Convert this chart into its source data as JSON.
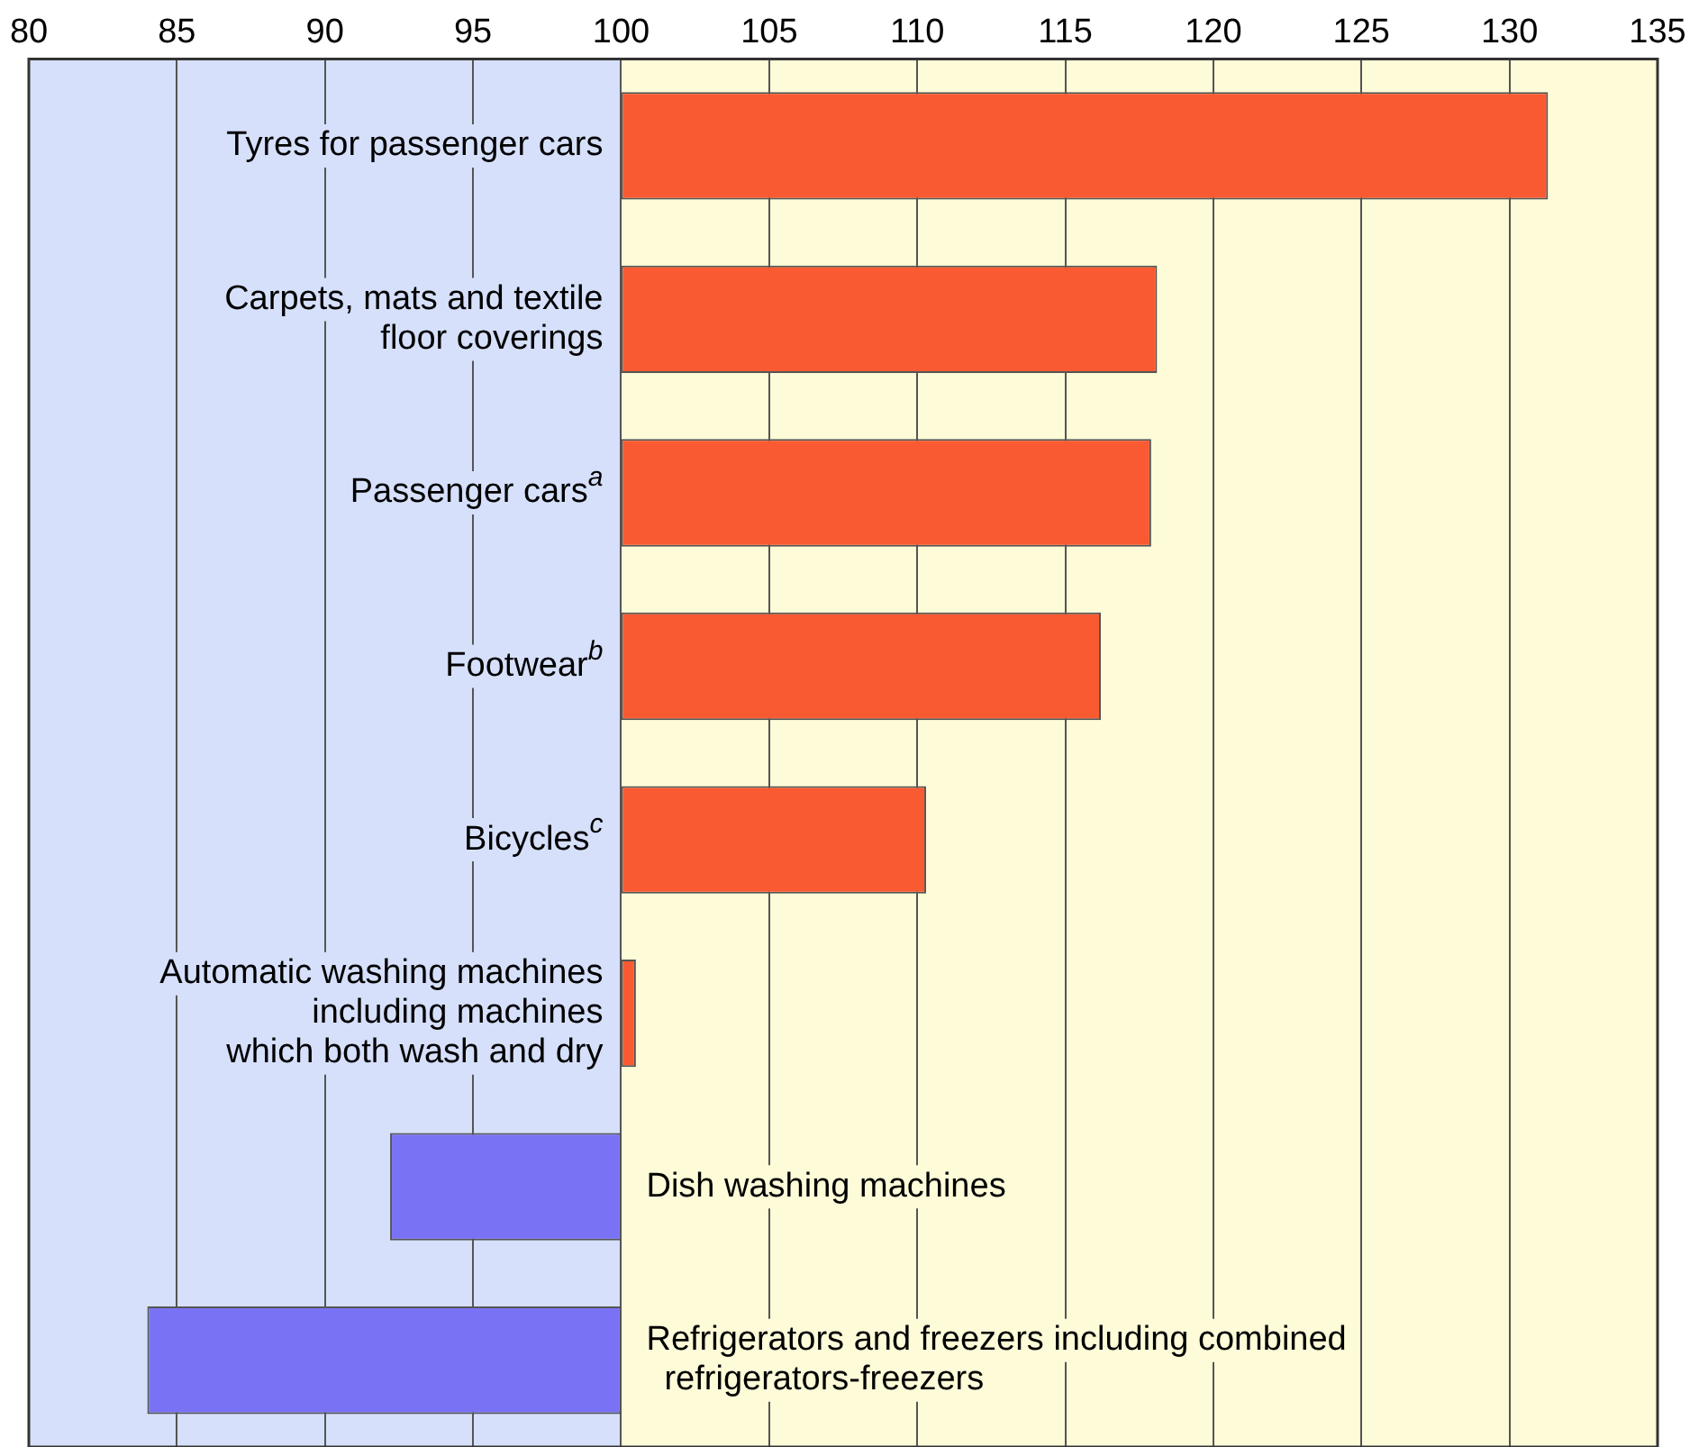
{
  "chart_data": {
    "type": "bar",
    "orientation": "horizontal",
    "categories": [
      "Tyres for passenger cars",
      "Carpets, mats and textile\nfloor coverings",
      "Passenger cars$^{a}$",
      "Footwear$^{b}$",
      "Bicycles$^{c}$",
      "Automatic washing machines\nincluding machines\nwhich both wash and dry",
      "Dish washing machines",
      "Refrigerators and freezers including combined\nrefrigerators-freezers"
    ],
    "base": [
      100,
      100,
      100,
      100,
      100,
      100,
      100,
      100
    ],
    "values": [
      31.3,
      18.1,
      17.9,
      16.2,
      10.3,
      0.5,
      -7.8,
      -16
    ],
    "colors": [
      "#fa5a32",
      "#fa5a32",
      "#fa5a32",
      "#fa5a32",
      "#fa5a32",
      "#fa5a32",
      "#7a72f5",
      "#7a72f5"
    ],
    "xlim": [
      80,
      135
    ],
    "xticks": [
      80,
      85,
      90,
      95,
      100,
      105,
      110,
      115,
      120,
      125,
      130,
      135
    ],
    "grid": "x",
    "bands": [
      {
        "axis": "x",
        "from": 80,
        "to": 100,
        "color": "#d6e0fb"
      },
      {
        "axis": "x",
        "from": 100,
        "to": 135,
        "color": "#fdfbd8"
      }
    ]
  }
}
